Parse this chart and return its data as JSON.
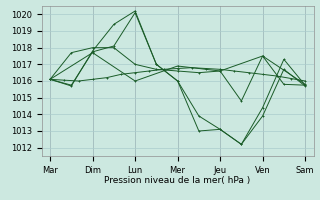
{
  "xlabel": "Pression niveau de la mer( hPa )",
  "days": [
    "Mar",
    "Dim",
    "Lun",
    "Mer",
    "Jeu",
    "Ven",
    "Sam"
  ],
  "ylim": [
    1011.5,
    1020.5
  ],
  "yticks": [
    1012,
    1013,
    1014,
    1015,
    1016,
    1017,
    1018,
    1019,
    1020
  ],
  "background_color": "#cce8e0",
  "grid_color": "#aacccc",
  "line_color": "#1a5c28",
  "n_days": 7,
  "series": [
    {
      "x": [
        0,
        0.33,
        0.67,
        1.0,
        1.33,
        1.67,
        2.0,
        2.33,
        2.67,
        3.0,
        3.33,
        3.67,
        4.0,
        4.33,
        4.67,
        5.0,
        5.33,
        5.67,
        6.0
      ],
      "y": [
        1016.1,
        1016.05,
        1016.0,
        1016.1,
        1016.2,
        1016.4,
        1016.5,
        1016.6,
        1016.7,
        1016.75,
        1016.8,
        1016.75,
        1016.7,
        1016.6,
        1016.5,
        1016.4,
        1016.3,
        1016.15,
        1016.0
      ]
    },
    {
      "x": [
        0,
        0.5,
        1.0,
        1.5,
        2.0,
        2.5,
        3.0,
        3.5,
        4.0,
        4.5,
        5.0,
        5.5,
        6.0
      ],
      "y": [
        1016.1,
        1015.75,
        1017.75,
        1018.1,
        1020.1,
        1017.0,
        1016.0,
        1013.9,
        1013.1,
        1012.2,
        1013.9,
        1016.7,
        1015.7
      ]
    },
    {
      "x": [
        0,
        0.5,
        1.0,
        1.5,
        2.0,
        2.5,
        3.0,
        3.5,
        4.0,
        4.5,
        5.0,
        5.5,
        6.0
      ],
      "y": [
        1016.1,
        1015.7,
        1017.8,
        1019.4,
        1020.2,
        1017.0,
        1016.0,
        1013.0,
        1013.1,
        1012.2,
        1014.4,
        1017.3,
        1015.75
      ]
    },
    {
      "x": [
        0,
        0.5,
        1.0,
        1.5,
        2.0,
        2.5,
        3.0,
        3.5,
        4.0,
        4.5,
        5.0,
        5.5,
        6.0
      ],
      "y": [
        1016.1,
        1017.7,
        1018.0,
        1018.0,
        1017.0,
        1016.7,
        1016.6,
        1016.5,
        1016.6,
        1014.8,
        1017.5,
        1015.8,
        1015.75
      ]
    },
    {
      "x": [
        0,
        1,
        2,
        3,
        4,
        5,
        6
      ],
      "y": [
        1016.1,
        1017.7,
        1016.0,
        1016.9,
        1016.6,
        1017.5,
        1015.8
      ]
    }
  ]
}
